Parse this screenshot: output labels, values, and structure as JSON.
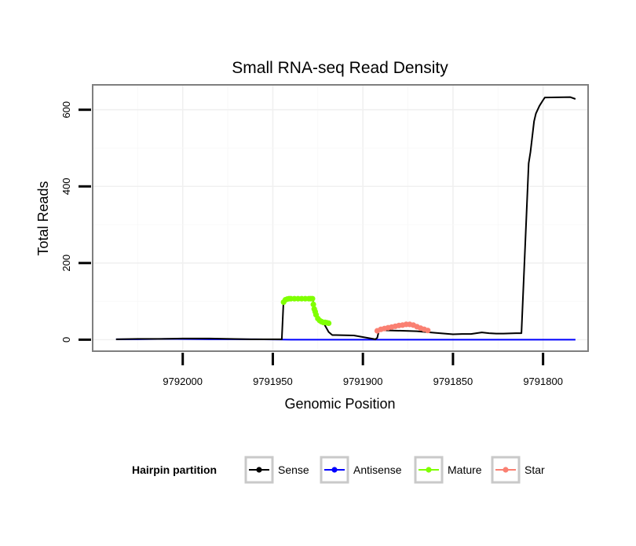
{
  "chart_data": {
    "type": "line",
    "title": "Small RNA-seq Read Density",
    "xlabel": "Genomic Position",
    "ylabel": "Total Reads",
    "x_reversed": true,
    "xlim": [
      9792050,
      9791775
    ],
    "ylim": [
      -30,
      665
    ],
    "x_ticks": [
      9792000,
      9791950,
      9791900,
      9791850,
      9791800
    ],
    "x_tick_labels": [
      "9792000",
      "9791950",
      "9791900",
      "9791850",
      "9791800"
    ],
    "y_ticks": [
      0,
      200,
      400,
      600
    ],
    "y_tick_labels": [
      "0",
      "200",
      "400",
      "600"
    ],
    "grid": true,
    "legend": {
      "title": "Hairpin partition",
      "placement": "bottom",
      "entries": [
        {
          "name": "Sense",
          "color": "#000000"
        },
        {
          "name": "Antisense",
          "color": "#0000ff"
        },
        {
          "name": "Mature",
          "color": "#7fff00"
        },
        {
          "name": "Star",
          "color": "#fa8072"
        }
      ]
    },
    "series": [
      {
        "name": "Sense",
        "style": "line",
        "color": "#000000",
        "x": [
          9792037,
          9792025,
          9792012,
          9792000,
          9791985,
          9791962,
          9791945,
          9791944,
          9791942,
          9791928,
          9791925,
          9791922,
          9791919,
          9791917,
          9791915,
          9791905,
          9791893,
          9791892,
          9791891,
          9791870,
          9791860,
          9791850,
          9791845,
          9791840,
          9791837,
          9791834,
          9791830,
          9791826,
          9791822,
          9791815,
          9791812,
          9791808,
          9791807,
          9791805,
          9791804,
          9791802,
          9791800,
          9791799,
          9791785,
          9791782
        ],
        "y": [
          1,
          2,
          2,
          3,
          3,
          1,
          1,
          105,
          107,
          107,
          50,
          45,
          20,
          12,
          12,
          11,
          1,
          5,
          25,
          22,
          18,
          14,
          15,
          15,
          17,
          19,
          17,
          16,
          16,
          17,
          17,
          460,
          490,
          570,
          590,
          610,
          625,
          632,
          633,
          628
        ]
      },
      {
        "name": "Antisense",
        "style": "line",
        "color": "#0000ff",
        "x": [
          9792037,
          9792025,
          9792010,
          9791985,
          9791960,
          9791940,
          9791900,
          9791860,
          9791820,
          9791782
        ],
        "y": [
          1,
          1,
          2,
          1,
          1,
          0,
          0,
          0,
          0,
          0
        ]
      },
      {
        "name": "Mature",
        "style": "points",
        "color": "#7fff00",
        "x": [
          9791944,
          9791943,
          9791942,
          9791941,
          9791940,
          9791938,
          9791936,
          9791934,
          9791932,
          9791930,
          9791929,
          9791928,
          9791927.5,
          9791927,
          9791926.5,
          9791926,
          9791925,
          9791924,
          9791923,
          9791922,
          9791921,
          9791920,
          9791919
        ],
        "y": [
          98,
          104,
          106,
          107,
          107,
          107,
          107,
          107,
          107,
          107,
          107,
          107,
          92,
          80,
          73,
          65,
          55,
          50,
          47,
          45,
          45,
          44,
          43
        ]
      },
      {
        "name": "Star",
        "style": "points",
        "color": "#fa8072",
        "x": [
          9791892,
          9791890,
          9791888,
          9791886,
          9791884,
          9791882,
          9791880,
          9791878,
          9791876,
          9791874,
          9791872,
          9791870,
          9791868,
          9791866,
          9791864
        ],
        "y": [
          23,
          27,
          29,
          31,
          33,
          35,
          37,
          38,
          40,
          40,
          38,
          34,
          30,
          27,
          24
        ]
      }
    ]
  }
}
